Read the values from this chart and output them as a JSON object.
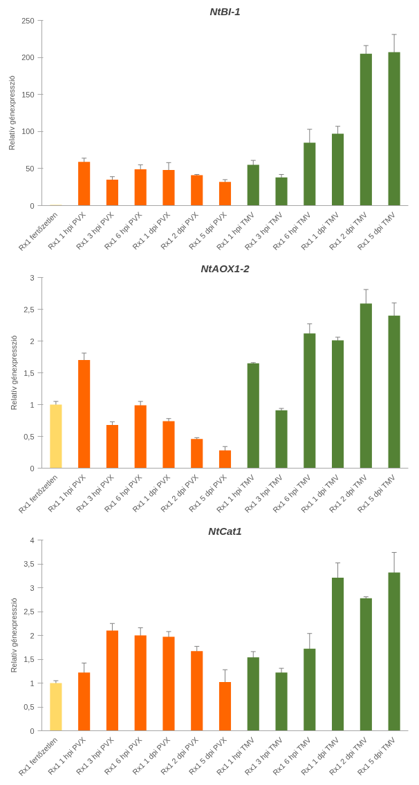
{
  "chart_data": [
    {
      "type": "bar",
      "title": "NtBI-1",
      "ylabel": "Relatív génexpresszió",
      "categories": [
        "Rx1 fertőzetlen",
        "Rx1 1 hpi PVX",
        "Rx1 3 hpi PVX",
        "Rx1 6 hpi PVX",
        "Rx1 1 dpi PVX",
        "Rx1 2 dpi PVX",
        "Rx1 5 dpi PVX",
        "Rx1 1 hpi TMV",
        "Rx1 3 hpi TMV",
        "Rx1 6 hpi TMV",
        "Rx1 1 dpi TMV",
        "Rx1 2 dpi TMV",
        "Rx1 5 dpi TMV"
      ],
      "values": [
        1,
        59,
        35,
        49,
        48,
        41,
        32,
        55,
        38,
        85,
        97,
        205,
        207
      ],
      "errors": [
        null,
        5,
        4,
        6,
        10,
        1,
        3,
        6,
        4,
        18,
        10,
        11,
        24
      ],
      "colors": [
        "#ffd966",
        "#ff6600",
        "#ff6600",
        "#ff6600",
        "#ff6600",
        "#ff6600",
        "#ff6600",
        "#548235",
        "#548235",
        "#548235",
        "#548235",
        "#548235",
        "#548235"
      ],
      "ylim": [
        0,
        250
      ],
      "yticks": [
        0,
        50,
        100,
        150,
        200,
        250
      ],
      "grid": false
    },
    {
      "type": "bar",
      "title": "NtAOX1-2",
      "ylabel": "Relatív génexpresszió",
      "categories": [
        "Rx1 fertőzetlen",
        "Rx1 1 hpi PVX",
        "Rx1 3 hpi PVX",
        "Rx1 6 hpi PVX",
        "Rx1 1 dpi PVX",
        "Rx1 2 dpi PVX",
        "Rx1 5 dpi PVX",
        "Rx1 1 hpi TMV",
        "Rx1 3 hpi TMV",
        "Rx1 6 hpi TMV",
        "Rx1 1 dpi TMV",
        "Rx1 2 dpi TMV",
        "Rx1 5 dpi TMV"
      ],
      "values": [
        1.0,
        1.7,
        0.68,
        0.99,
        0.74,
        0.46,
        0.28,
        1.65,
        0.91,
        2.12,
        2.01,
        2.59,
        2.4
      ],
      "errors": [
        0.05,
        0.11,
        0.05,
        0.06,
        0.04,
        0.02,
        0.06,
        0.01,
        0.03,
        0.15,
        0.05,
        0.22,
        0.2
      ],
      "colors": [
        "#ffd966",
        "#ff6600",
        "#ff6600",
        "#ff6600",
        "#ff6600",
        "#ff6600",
        "#ff6600",
        "#548235",
        "#548235",
        "#548235",
        "#548235",
        "#548235",
        "#548235"
      ],
      "ylim": [
        0,
        3
      ],
      "yticks": [
        0,
        {
          "value": 0.5,
          "label": "0,5"
        },
        1,
        {
          "value": 1.5,
          "label": "1,5"
        },
        2,
        {
          "value": 2.5,
          "label": "2,5"
        },
        3
      ],
      "grid": false
    },
    {
      "type": "bar",
      "title": "NtCat1",
      "ylabel": "Relatív génexpresszió",
      "categories": [
        "Rx1 fertőzetlen",
        "Rx1 1 hpi PVX",
        "Rx1 3 hpi PVX",
        "Rx1 6 hpi PVX",
        "Rx1 1 dpi PVX",
        "Rx1 2 dpi PVX",
        "Rx1 5 dpi PVX",
        "Rx1 1 hpi TMV",
        "Rx1 3 hpi TMV",
        "Rx1 6 hpi TMV",
        "Rx1 1 dpi TMV",
        "Rx1 2 dpi TMV",
        "Rx1 5 dpi TMV"
      ],
      "values": [
        1.0,
        1.22,
        2.1,
        2.0,
        1.97,
        1.67,
        1.02,
        1.54,
        1.22,
        1.72,
        3.21,
        2.78,
        3.32
      ],
      "errors": [
        0.05,
        0.2,
        0.15,
        0.16,
        0.11,
        0.1,
        0.26,
        0.12,
        0.09,
        0.32,
        0.31,
        0.03,
        0.42
      ],
      "colors": [
        "#ffd966",
        "#ff6600",
        "#ff6600",
        "#ff6600",
        "#ff6600",
        "#ff6600",
        "#ff6600",
        "#548235",
        "#548235",
        "#548235",
        "#548235",
        "#548235",
        "#548235"
      ],
      "ylim": [
        0,
        4
      ],
      "yticks": [
        0,
        {
          "value": 0.5,
          "label": "0,5"
        },
        1,
        {
          "value": 1.5,
          "label": "1,5"
        },
        2,
        {
          "value": 2.5,
          "label": "2,5"
        },
        3,
        {
          "value": 3.5,
          "label": "3,5"
        },
        4
      ],
      "grid": false
    }
  ]
}
